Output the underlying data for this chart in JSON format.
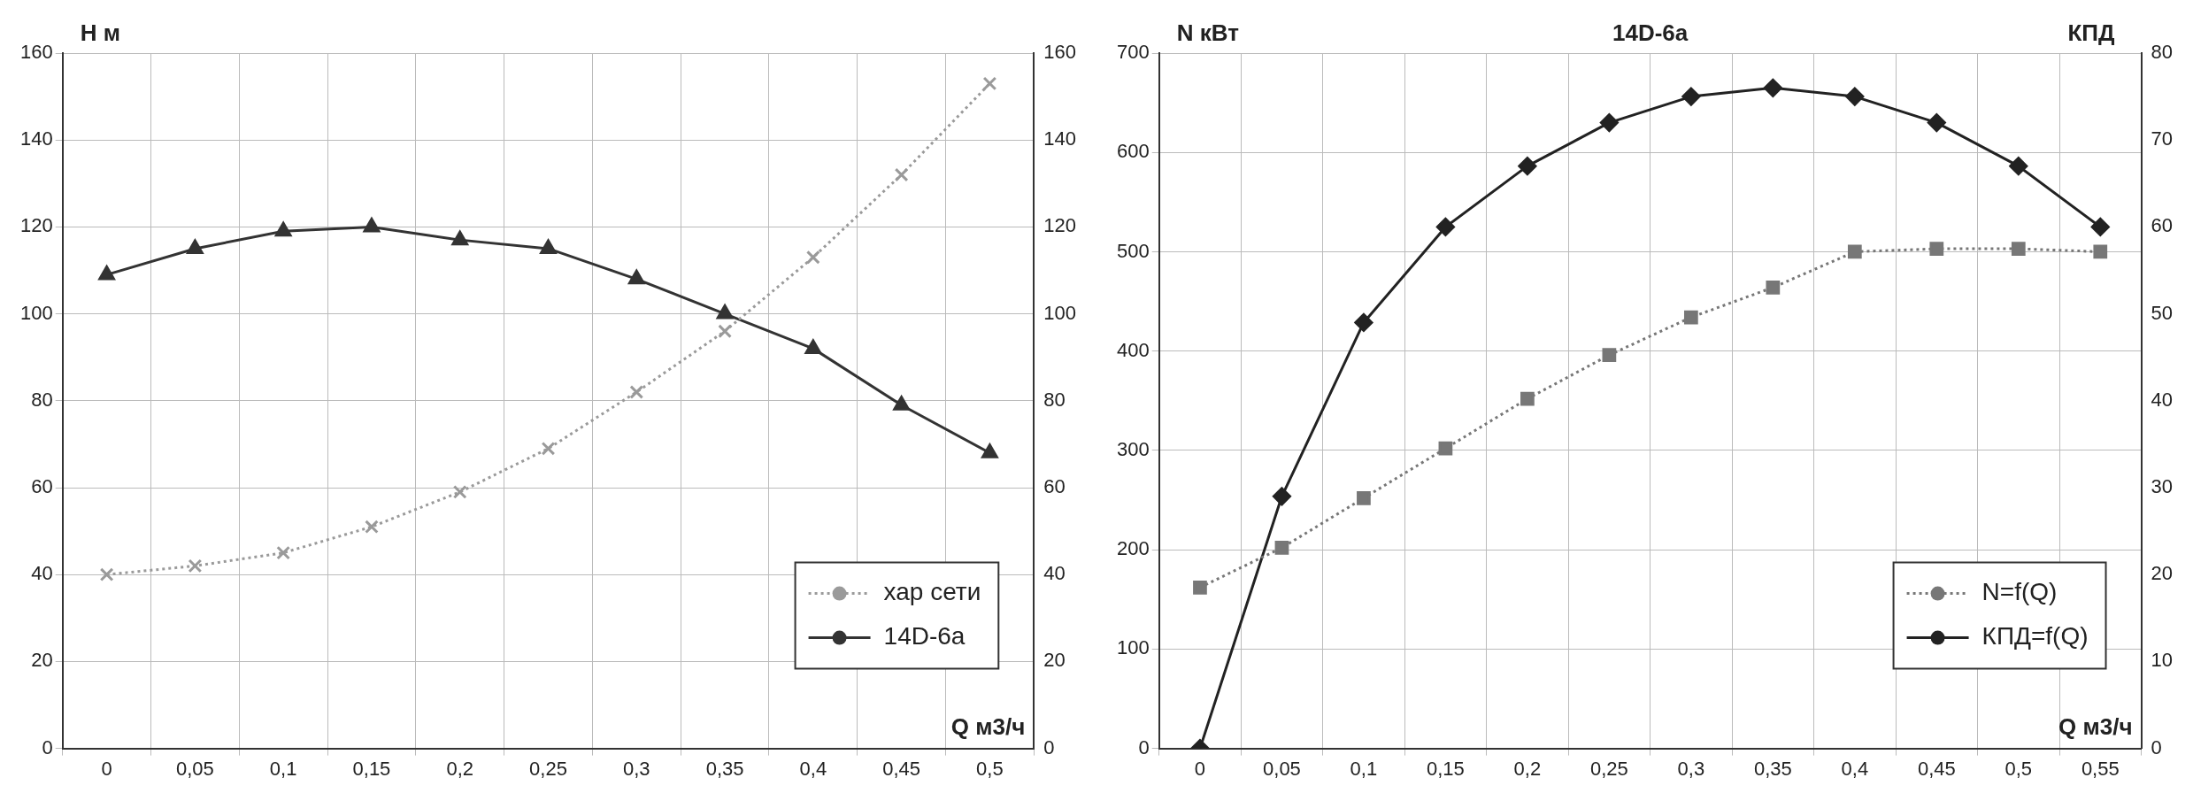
{
  "chart_data": [
    {
      "type": "line",
      "xlabel": "Q м3/ч",
      "ylabel": "H м",
      "categories": [
        "0",
        "0,05",
        "0,1",
        "0,15",
        "0,2",
        "0,25",
        "0,3",
        "0,35",
        "0,4",
        "0,45",
        "0,5"
      ],
      "series": [
        {
          "name": "хар сети",
          "color": "#9a9a9a",
          "marker": "cross",
          "line_style": "dotted",
          "values": [
            40,
            42,
            45,
            51,
            59,
            69,
            82,
            96,
            113,
            132,
            153
          ]
        },
        {
          "name": "14D-6a",
          "color": "#333333",
          "marker": "triangle",
          "line_style": "solid",
          "values": [
            109,
            115,
            119,
            120,
            117,
            115,
            108,
            100,
            92,
            79,
            68
          ]
        }
      ],
      "ylim": [
        0,
        160
      ],
      "yticks": [
        0,
        20,
        40,
        60,
        80,
        100,
        120,
        140,
        160
      ],
      "y2lim": [
        0,
        160
      ],
      "y2ticks": [
        0,
        20,
        40,
        60,
        80,
        100,
        120,
        140,
        160
      ],
      "grid": true,
      "legend": "bottom right"
    },
    {
      "type": "line",
      "title": "14D-6a",
      "xlabel": "Q м3/ч",
      "ylabel": "N кВт",
      "y2label": "КПД",
      "categories": [
        "0",
        "0,05",
        "0,1",
        "0,15",
        "0,2",
        "0,25",
        "0,3",
        "0,35",
        "0,4",
        "0,45",
        "0,5",
        "0,55"
      ],
      "series": [
        {
          "name": "N=f(Q)",
          "color": "#777777",
          "marker": "square",
          "line_style": "dotted",
          "values": [
            162,
            202,
            252,
            302,
            352,
            396,
            434,
            464,
            500,
            503,
            503,
            500
          ]
        },
        {
          "name": "КПД=f(Q)",
          "color": "#222222",
          "marker": "diamond",
          "line_style": "solid",
          "axis": "y2",
          "values": [
            0,
            29,
            49,
            60,
            67,
            72,
            75,
            76,
            75,
            72,
            67,
            60
          ]
        }
      ],
      "ylim": [
        0,
        700
      ],
      "yticks": [
        0,
        100,
        200,
        300,
        400,
        500,
        600,
        700
      ],
      "y2lim": [
        0,
        80
      ],
      "y2ticks": [
        0,
        10,
        20,
        30,
        40,
        50,
        60,
        70,
        80
      ],
      "grid": true,
      "legend": "bottom right"
    }
  ]
}
